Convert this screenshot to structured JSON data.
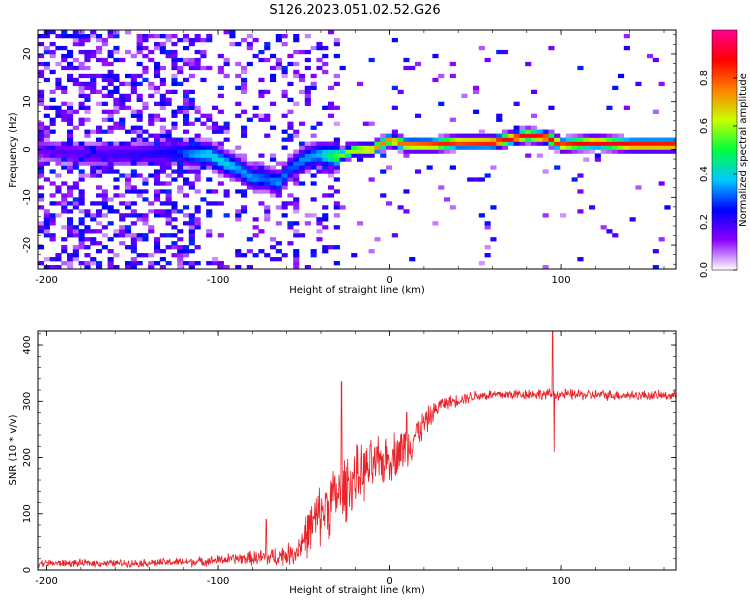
{
  "title": "S126.2023.051.02.52.G26",
  "chart_data": [
    {
      "type": "heatmap",
      "xlabel": "Height of straight line (km)",
      "ylabel": "Frequency (Hz)",
      "xlim": [
        -205,
        167
      ],
      "ylim": [
        -25,
        25
      ],
      "xticks": [
        -200,
        -100,
        0,
        100
      ],
      "yticks": [
        -20,
        -10,
        0,
        10,
        20
      ],
      "colorbar": {
        "label": "Normalized spectral amplitude",
        "range": [
          0,
          1
        ],
        "ticks": [
          "0.0",
          "0.2",
          "0.4",
          "0.6",
          "0.8"
        ],
        "colormap": [
          "#ffffff",
          "#8a00ff",
          "#0000ff",
          "#00c8ff",
          "#00ff40",
          "#c8ff00",
          "#ff8000",
          "#ff0000",
          "#ff0090"
        ]
      },
      "ridge": [
        {
          "x": -205,
          "y": 0,
          "a": 0.15
        },
        {
          "x": -180,
          "y": -1,
          "a": 0.18
        },
        {
          "x": -150,
          "y": -1,
          "a": 0.2
        },
        {
          "x": -125,
          "y": -0.5,
          "a": 0.25
        },
        {
          "x": -115,
          "y": -1,
          "a": 0.35
        },
        {
          "x": -105,
          "y": -1,
          "a": 0.4
        },
        {
          "x": -95,
          "y": -3,
          "a": 0.4
        },
        {
          "x": -88,
          "y": -4,
          "a": 0.35
        },
        {
          "x": -80,
          "y": -6,
          "a": 0.35
        },
        {
          "x": -72,
          "y": -6,
          "a": 0.3
        },
        {
          "x": -65,
          "y": -7,
          "a": 0.35
        },
        {
          "x": -58,
          "y": -4,
          "a": 0.3
        },
        {
          "x": -50,
          "y": -2,
          "a": 0.35
        },
        {
          "x": -42,
          "y": -1,
          "a": 0.35
        },
        {
          "x": -30,
          "y": -1.5,
          "a": 0.55
        },
        {
          "x": -20,
          "y": 0,
          "a": 0.65
        },
        {
          "x": -10,
          "y": 0,
          "a": 0.75
        },
        {
          "x": 0,
          "y": 2,
          "a": 0.75
        },
        {
          "x": 10,
          "y": 1,
          "a": 0.8
        },
        {
          "x": 25,
          "y": 1,
          "a": 0.85
        },
        {
          "x": 40,
          "y": 1.5,
          "a": 0.85
        },
        {
          "x": 60,
          "y": 1.5,
          "a": 0.9
        },
        {
          "x": 80,
          "y": 3,
          "a": 0.9
        },
        {
          "x": 92,
          "y": 2.5,
          "a": 0.9
        },
        {
          "x": 100,
          "y": 1,
          "a": 0.85
        },
        {
          "x": 120,
          "y": 1.5,
          "a": 0.9
        },
        {
          "x": 140,
          "y": 1,
          "a": 0.9
        },
        {
          "x": 167,
          "y": 1,
          "a": 0.9
        }
      ]
    },
    {
      "type": "line",
      "xlabel": "Height of straight line (km)",
      "ylabel": "SNR (10 * v/v)",
      "xlim": [
        -205,
        167
      ],
      "ylim": [
        0,
        425
      ],
      "xticks": [
        -200,
        -100,
        0,
        100
      ],
      "yticks": [
        0,
        100,
        200,
        300,
        400
      ],
      "color": "#e8232a",
      "envelope": [
        {
          "x": -205,
          "y": 12,
          "noise": 8
        },
        {
          "x": -150,
          "y": 12,
          "noise": 8
        },
        {
          "x": -110,
          "y": 15,
          "noise": 10
        },
        {
          "x": -90,
          "y": 20,
          "noise": 12
        },
        {
          "x": -70,
          "y": 22,
          "noise": 20
        },
        {
          "x": -55,
          "y": 30,
          "noise": 25
        },
        {
          "x": -45,
          "y": 80,
          "noise": 60
        },
        {
          "x": -35,
          "y": 120,
          "noise": 70
        },
        {
          "x": -25,
          "y": 150,
          "noise": 70
        },
        {
          "x": -15,
          "y": 175,
          "noise": 60
        },
        {
          "x": 0,
          "y": 200,
          "noise": 50
        },
        {
          "x": 10,
          "y": 220,
          "noise": 50
        },
        {
          "x": 20,
          "y": 260,
          "noise": 30
        },
        {
          "x": 30,
          "y": 295,
          "noise": 15
        },
        {
          "x": 50,
          "y": 310,
          "noise": 12
        },
        {
          "x": 80,
          "y": 313,
          "noise": 12
        },
        {
          "x": 100,
          "y": 312,
          "noise": 12
        },
        {
          "x": 167,
          "y": 310,
          "noise": 10
        }
      ],
      "spikes": [
        {
          "x": -72,
          "y": 90
        },
        {
          "x": -28,
          "y": 335
        },
        {
          "x": 10,
          "y": 280
        },
        {
          "x": 95,
          "y": 425
        },
        {
          "x": 96,
          "y": 210
        }
      ]
    }
  ]
}
